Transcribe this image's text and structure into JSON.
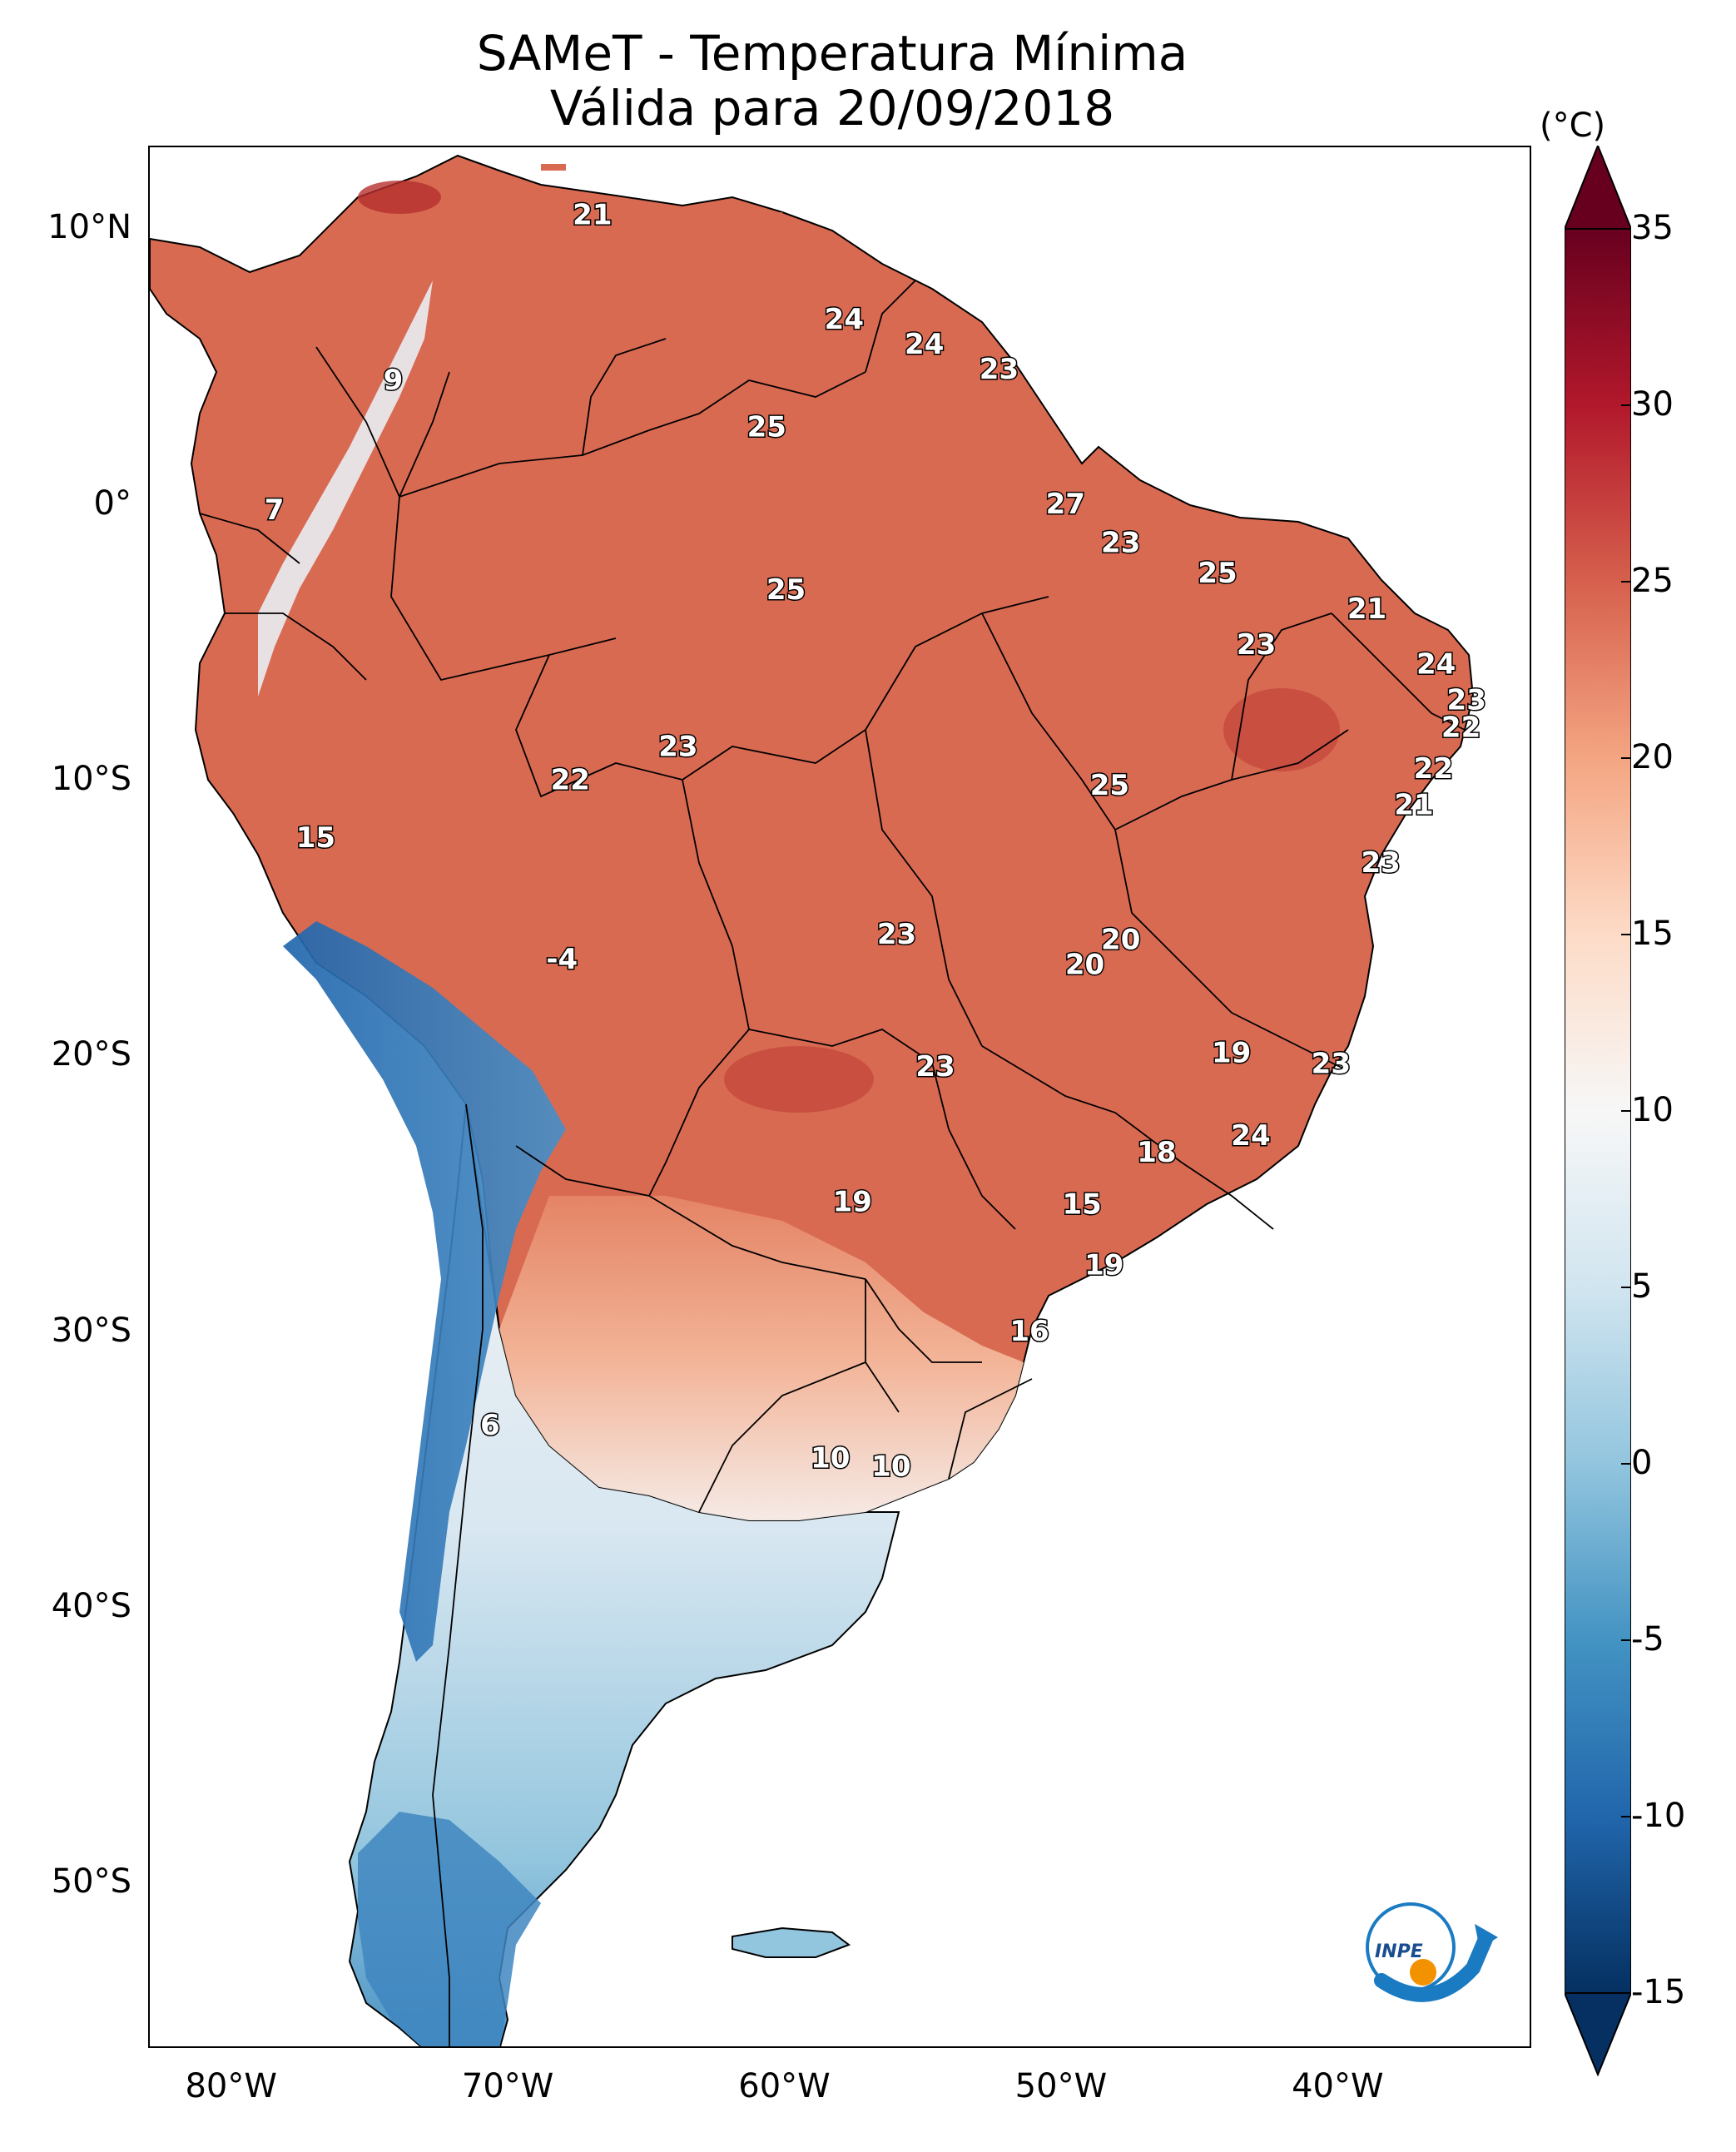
{
  "title": {
    "line1": "SAMeT - Temperatura Mínima",
    "line2": "Válida para 20/09/2018"
  },
  "axes": {
    "lat_labels": [
      "10°N",
      "0°",
      "10°S",
      "20°S",
      "30°S",
      "40°S",
      "50°S"
    ],
    "lon_labels": [
      "80°W",
      "70°W",
      "60°W",
      "50°W",
      "40°W"
    ]
  },
  "colorbar": {
    "unit": "(°C)",
    "ticks": [
      "35",
      "30",
      "25",
      "20",
      "15",
      "10",
      "5",
      "0",
      "-5",
      "-10",
      "-15"
    ],
    "min": -15,
    "max": 35,
    "colors": [
      "#053061",
      "#2166ac",
      "#4393c3",
      "#92c5de",
      "#d1e5f0",
      "#f7f7f7",
      "#fddbc7",
      "#f4a582",
      "#d6604d",
      "#b2182b",
      "#67001f"
    ]
  },
  "logo": {
    "text": "INPE"
  },
  "chart_data": {
    "type": "heatmap",
    "title": "SAMeT - Temperatura Mínima",
    "subtitle": "Válida para 20/09/2018",
    "xlabel": "",
    "ylabel": "",
    "xlim": [
      -83,
      -33
    ],
    "ylim": [
      -56,
      13
    ],
    "units": "°C",
    "value_range": [
      -15,
      35
    ],
    "station_values": [
      {
        "value": "21",
        "lon": -67,
        "lat": 10.5
      },
      {
        "value": "9",
        "lon": -74.2,
        "lat": 4.5
      },
      {
        "value": "24",
        "lon": -57.9,
        "lat": 6.7
      },
      {
        "value": "24",
        "lon": -55,
        "lat": 5.8
      },
      {
        "value": "23",
        "lon": -52.3,
        "lat": 4.9
      },
      {
        "value": "25",
        "lon": -60.7,
        "lat": 2.8
      },
      {
        "value": "7",
        "lon": -78.5,
        "lat": -0.2
      },
      {
        "value": "27",
        "lon": -49.9,
        "lat": 0.0
      },
      {
        "value": "23",
        "lon": -47.9,
        "lat": -1.4
      },
      {
        "value": "25",
        "lon": -60,
        "lat": -3.1
      },
      {
        "value": "25",
        "lon": -44.4,
        "lat": -2.5
      },
      {
        "value": "21",
        "lon": -39,
        "lat": -3.8
      },
      {
        "value": "23",
        "lon": -43,
        "lat": -5.1
      },
      {
        "value": "24",
        "lon": -36.5,
        "lat": -5.8
      },
      {
        "value": "23",
        "lon": -35.4,
        "lat": -7.1
      },
      {
        "value": "22",
        "lon": -35.6,
        "lat": -8.1
      },
      {
        "value": "23",
        "lon": -63.9,
        "lat": -8.8
      },
      {
        "value": "22",
        "lon": -67.8,
        "lat": -10.0
      },
      {
        "value": "25",
        "lon": -48.3,
        "lat": -10.2
      },
      {
        "value": "22",
        "lon": -36.6,
        "lat": -9.6
      },
      {
        "value": "21",
        "lon": -37.3,
        "lat": -10.9
      },
      {
        "value": "15",
        "lon": -77,
        "lat": -12.1
      },
      {
        "value": "23",
        "lon": -38.5,
        "lat": -13
      },
      {
        "value": "23",
        "lon": -56,
        "lat": -15.6
      },
      {
        "value": "20",
        "lon": -47.9,
        "lat": -15.8
      },
      {
        "value": "20",
        "lon": -49.2,
        "lat": -16.7
      },
      {
        "value": "-4",
        "lon": -68.1,
        "lat": -16.5
      },
      {
        "value": "19",
        "lon": -43.9,
        "lat": -19.9
      },
      {
        "value": "23",
        "lon": -40.3,
        "lat": -20.3
      },
      {
        "value": "23",
        "lon": -54.6,
        "lat": -20.4
      },
      {
        "value": "24",
        "lon": -43.2,
        "lat": -22.9
      },
      {
        "value": "18",
        "lon": -46.6,
        "lat": -23.5
      },
      {
        "value": "19",
        "lon": -57.6,
        "lat": -25.3
      },
      {
        "value": "15",
        "lon": -49.3,
        "lat": -25.4
      },
      {
        "value": "19",
        "lon": -48.5,
        "lat": -27.6
      },
      {
        "value": "16",
        "lon": -51.2,
        "lat": -30
      },
      {
        "value": "6",
        "lon": -70.7,
        "lat": -33.4
      },
      {
        "value": "10",
        "lon": -58.4,
        "lat": -34.6
      },
      {
        "value": "10",
        "lon": -56.2,
        "lat": -34.9
      }
    ]
  }
}
